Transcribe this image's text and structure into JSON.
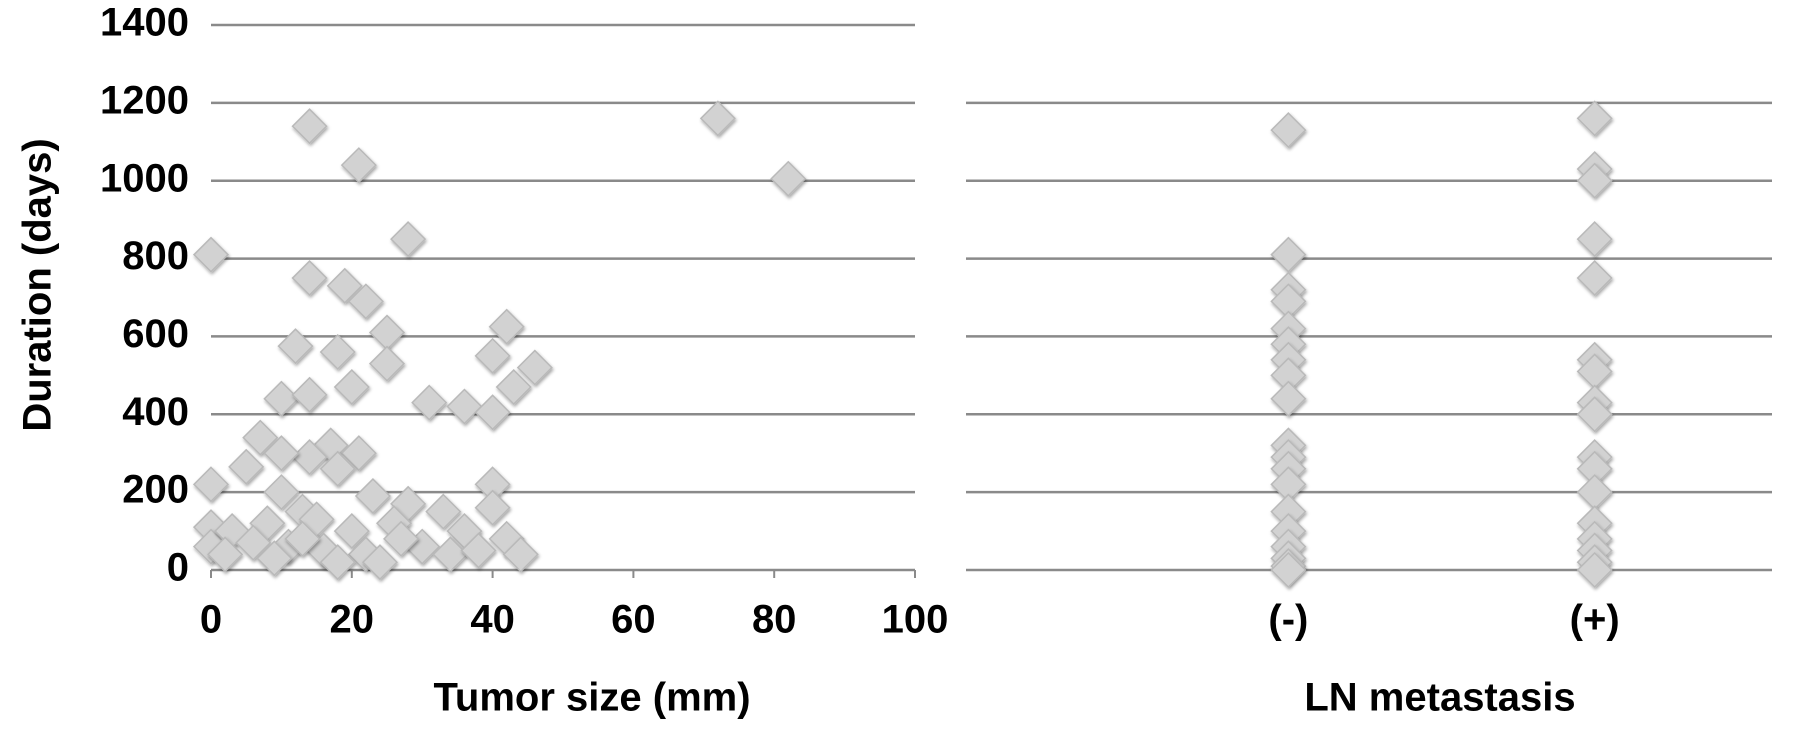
{
  "chart_data": [
    {
      "type": "scatter",
      "x_label": "Tumor size (mm)",
      "y_label": "Duration (days)",
      "x": [
        0,
        0,
        0,
        0,
        14,
        21,
        72,
        82,
        28,
        14,
        19,
        22,
        12,
        18,
        25,
        25,
        42,
        40,
        46,
        43,
        20,
        10,
        14,
        31,
        36,
        40,
        7,
        17,
        21,
        14,
        5,
        18,
        10,
        10,
        23,
        40,
        40,
        28,
        33,
        13,
        3,
        8,
        15,
        20,
        26,
        36,
        42,
        44,
        30,
        2,
        6,
        11,
        16,
        22,
        24,
        34,
        38,
        18,
        9,
        27,
        13
      ],
      "values": [
        810,
        220,
        110,
        60,
        1140,
        1040,
        1160,
        1005,
        850,
        750,
        730,
        690,
        575,
        560,
        610,
        530,
        625,
        550,
        520,
        470,
        470,
        440,
        450,
        430,
        420,
        405,
        340,
        320,
        300,
        290,
        265,
        260,
        300,
        200,
        190,
        220,
        160,
        170,
        150,
        150,
        100,
        120,
        130,
        100,
        120,
        100,
        80,
        40,
        60,
        40,
        70,
        60,
        50,
        40,
        20,
        40,
        50,
        20,
        30,
        80,
        80
      ],
      "color": "#d2d2d2",
      "xlim": [
        0,
        100
      ],
      "xticks": [
        0,
        20,
        40,
        60,
        80,
        100
      ],
      "ylim": [
        0,
        1400
      ],
      "yticks": [
        0,
        200,
        400,
        600,
        800,
        1000,
        1200,
        1400
      ],
      "grid": true
    },
    {
      "type": "strip",
      "x_label": "LN metastasis",
      "categories": [
        "(-)",
        "(+)"
      ],
      "values": [
        [
          1130,
          810,
          720,
          690,
          620,
          580,
          540,
          500,
          440,
          320,
          290,
          260,
          220,
          150,
          100,
          60,
          30,
          10,
          0
        ],
        [
          1160,
          1030,
          1000,
          850,
          750,
          540,
          510,
          430,
          400,
          290,
          260,
          200,
          120,
          80,
          50,
          20,
          0
        ]
      ],
      "color": "#d2d2d2",
      "ylim": [
        0,
        1400
      ],
      "yticks": [
        0,
        200,
        400,
        600,
        800,
        1000,
        1200
      ],
      "grid": true
    }
  ]
}
